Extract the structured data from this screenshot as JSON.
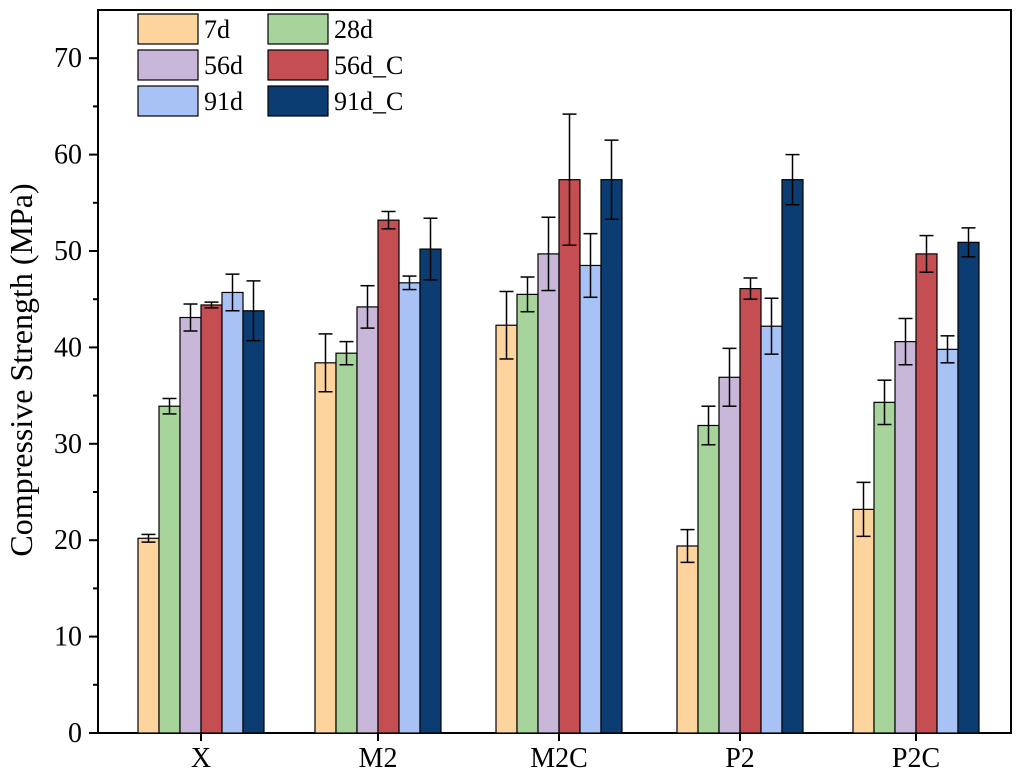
{
  "chart_data": {
    "type": "bar",
    "ylabel": "Compressive Strength (MPa)",
    "xlabel": "",
    "ylim": [
      0,
      75
    ],
    "yticks": [
      0,
      10,
      20,
      30,
      40,
      50,
      60,
      70
    ],
    "grid": false,
    "legend_position": "top-left",
    "categories": [
      "X",
      "M2",
      "M2C",
      "P2",
      "P2C"
    ],
    "series": [
      {
        "name": "7d",
        "color": "#FDD49E",
        "values": [
          20.2,
          38.4,
          42.3,
          19.4,
          23.2
        ],
        "errors": [
          0.4,
          3.0,
          3.5,
          1.7,
          2.8
        ]
      },
      {
        "name": "28d",
        "color": "#A6D49A",
        "values": [
          33.9,
          39.4,
          45.5,
          31.9,
          34.3
        ],
        "errors": [
          0.8,
          1.2,
          1.8,
          2.0,
          2.3
        ]
      },
      {
        "name": "56d",
        "color": "#C9B7D9",
        "values": [
          43.1,
          44.2,
          49.7,
          36.9,
          40.6
        ],
        "errors": [
          1.4,
          2.2,
          3.8,
          3.0,
          2.4
        ]
      },
      {
        "name": "56d_C",
        "color": "#C44E52",
        "values": [
          44.4,
          53.2,
          57.4,
          46.1,
          49.7
        ],
        "errors": [
          0.3,
          0.9,
          6.8,
          1.1,
          1.9
        ]
      },
      {
        "name": "91d",
        "color": "#A9C2F5",
        "values": [
          45.7,
          46.7,
          48.5,
          42.2,
          39.8
        ],
        "errors": [
          1.9,
          0.7,
          3.3,
          2.9,
          1.4
        ]
      },
      {
        "name": "91d_C",
        "color": "#0B3D73",
        "values": [
          43.8,
          50.2,
          57.4,
          57.4,
          50.9
        ],
        "errors": [
          3.1,
          3.2,
          4.1,
          2.6,
          1.5
        ]
      }
    ]
  }
}
